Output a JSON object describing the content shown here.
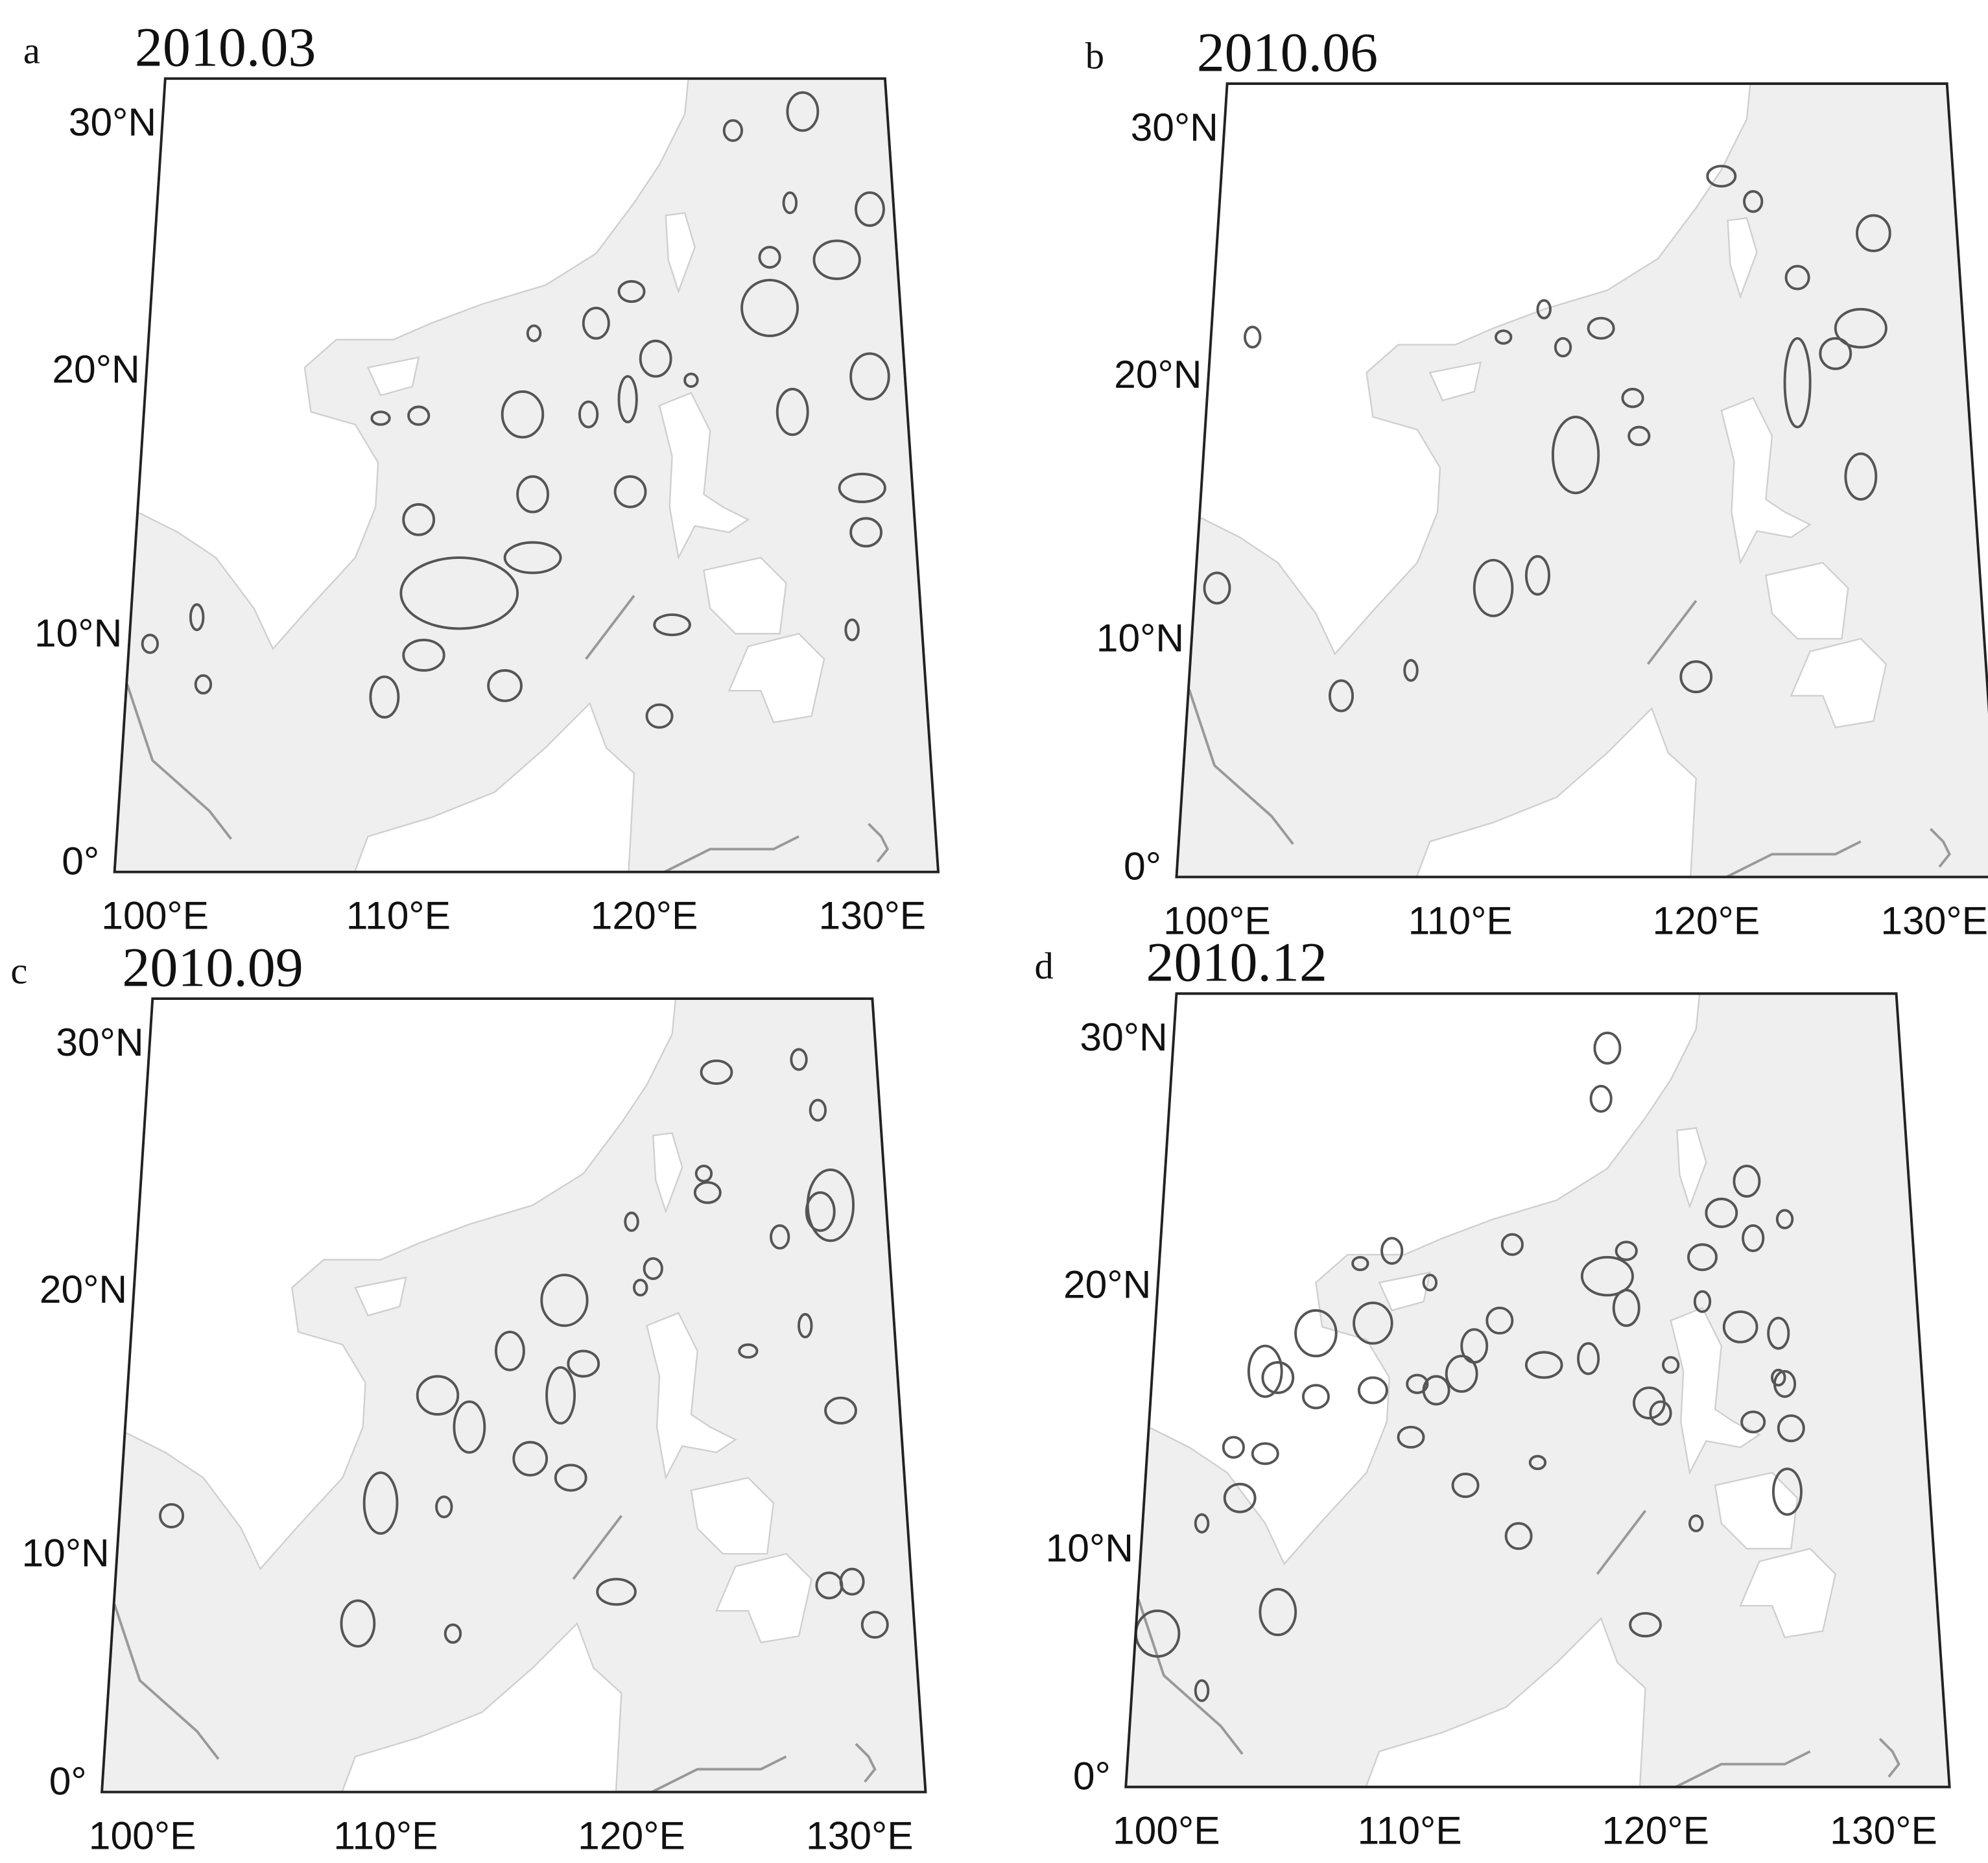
{
  "panels": [
    {
      "letter": "a",
      "date": "2010.03",
      "lat_labels": [
        "30°N",
        "20°N",
        "10°N",
        "0°"
      ],
      "lon_labels": [
        "100°E",
        "110°E",
        "120°E",
        "130°E"
      ]
    },
    {
      "letter": "b",
      "date": "2010.06",
      "lat_labels": [
        "30°N",
        "20°N",
        "10°N",
        "0°"
      ],
      "lon_labels": [
        "100°E",
        "110°E",
        "120°E",
        "130°E"
      ]
    },
    {
      "letter": "c",
      "date": "2010.09",
      "lat_labels": [
        "30°N",
        "20°N",
        "10°N",
        "0°"
      ],
      "lon_labels": [
        "100°E",
        "110°E",
        "120°E",
        "130°E"
      ]
    },
    {
      "letter": "d",
      "date": "2010.12",
      "lat_labels": [
        "30°N",
        "20°N",
        "10°N",
        "0°"
      ],
      "lon_labels": [
        "100°E",
        "110°E",
        "120°E",
        "130°E"
      ]
    }
  ]
}
